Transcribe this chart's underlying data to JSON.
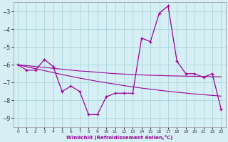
{
  "x": [
    0,
    1,
    2,
    3,
    4,
    5,
    6,
    7,
    8,
    9,
    10,
    11,
    12,
    13,
    14,
    15,
    16,
    17,
    18,
    19,
    20,
    21,
    22,
    23
  ],
  "y_main": [
    -6.0,
    -6.3,
    -6.3,
    -5.7,
    -6.1,
    -7.5,
    -7.2,
    -7.5,
    -8.8,
    -8.8,
    -7.8,
    -7.6,
    -7.6,
    -7.6,
    -4.5,
    -4.7,
    -3.1,
    -2.7,
    -5.8,
    -6.5,
    -6.5,
    -6.7,
    -6.5,
    -8.5
  ],
  "y_trend1": [
    -6.0,
    -6.05,
    -6.1,
    -6.15,
    -6.2,
    -6.25,
    -6.3,
    -6.35,
    -6.38,
    -6.42,
    -6.46,
    -6.5,
    -6.52,
    -6.55,
    -6.57,
    -6.59,
    -6.6,
    -6.62,
    -6.63,
    -6.64,
    -6.65,
    -6.66,
    -6.67,
    -6.68
  ],
  "y_trend2": [
    -6.0,
    -6.11,
    -6.22,
    -6.33,
    -6.44,
    -6.55,
    -6.65,
    -6.75,
    -6.84,
    -6.93,
    -7.01,
    -7.09,
    -7.17,
    -7.24,
    -7.31,
    -7.37,
    -7.43,
    -7.49,
    -7.54,
    -7.59,
    -7.64,
    -7.68,
    -7.72,
    -7.76
  ],
  "bg_color": "#d6eff5",
  "line_color": "#990099",
  "grid_color": "#aad4dc",
  "xlabel": "Windchill (Refroidissement éolien,°C)",
  "ylim": [
    -9.5,
    -2.5
  ],
  "xlim": [
    -0.5,
    23.5
  ],
  "yticks": [
    -3,
    -4,
    -5,
    -6,
    -7,
    -8,
    -9
  ],
  "xticks": [
    0,
    1,
    2,
    3,
    4,
    5,
    6,
    7,
    8,
    9,
    10,
    11,
    12,
    13,
    14,
    15,
    16,
    17,
    18,
    19,
    20,
    21,
    22,
    23
  ]
}
